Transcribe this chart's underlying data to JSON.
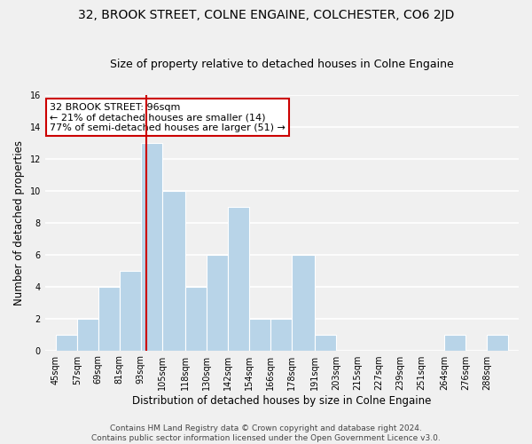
{
  "title": "32, BROOK STREET, COLNE ENGAINE, COLCHESTER, CO6 2JD",
  "subtitle": "Size of property relative to detached houses in Colne Engaine",
  "xlabel": "Distribution of detached houses by size in Colne Engaine",
  "ylabel": "Number of detached properties",
  "bin_labels": [
    "45sqm",
    "57sqm",
    "69sqm",
    "81sqm",
    "93sqm",
    "105sqm",
    "118sqm",
    "130sqm",
    "142sqm",
    "154sqm",
    "166sqm",
    "178sqm",
    "191sqm",
    "203sqm",
    "215sqm",
    "227sqm",
    "239sqm",
    "251sqm",
    "264sqm",
    "276sqm",
    "288sqm"
  ],
  "bin_edges": [
    45,
    57,
    69,
    81,
    93,
    105,
    118,
    130,
    142,
    154,
    166,
    178,
    191,
    203,
    215,
    227,
    239,
    251,
    264,
    276,
    288,
    300
  ],
  "counts": [
    1,
    2,
    4,
    5,
    13,
    10,
    4,
    6,
    9,
    2,
    2,
    6,
    1,
    0,
    0,
    0,
    0,
    0,
    1,
    0,
    1
  ],
  "bar_color": "#b8d4e8",
  "bar_edge_color": "#ffffff",
  "reference_line_x": 96,
  "reference_line_color": "#cc0000",
  "annotation_line1": "32 BROOK STREET: 96sqm",
  "annotation_line2": "← 21% of detached houses are smaller (14)",
  "annotation_line3": "77% of semi-detached houses are larger (51) →",
  "annotation_box_color": "#ffffff",
  "annotation_box_edge_color": "#cc0000",
  "ylim": [
    0,
    16
  ],
  "yticks": [
    0,
    2,
    4,
    6,
    8,
    10,
    12,
    14,
    16
  ],
  "footer_line1": "Contains HM Land Registry data © Crown copyright and database right 2024.",
  "footer_line2": "Contains public sector information licensed under the Open Government Licence v3.0.",
  "bg_color": "#f0f0f0",
  "grid_color": "#ffffff",
  "title_fontsize": 10,
  "subtitle_fontsize": 9,
  "axis_label_fontsize": 8.5,
  "tick_fontsize": 7,
  "annotation_fontsize": 8,
  "footer_fontsize": 6.5
}
